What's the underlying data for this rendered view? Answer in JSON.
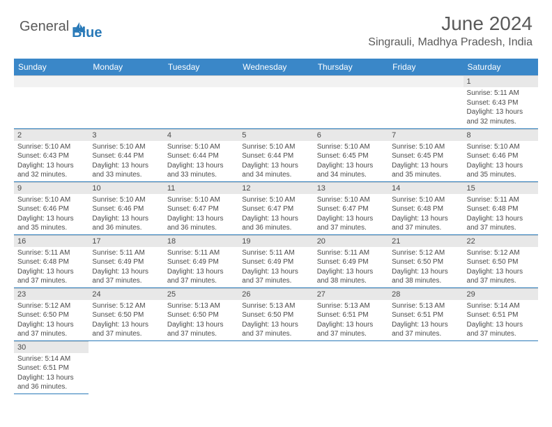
{
  "brand": {
    "part1": "General",
    "part2": "Blue"
  },
  "title": "June 2024",
  "location": "Singrauli, Madhya Pradesh, India",
  "colors": {
    "header_bg": "#3a87c8",
    "header_text": "#ffffff",
    "daynum_bg": "#e8e8e8",
    "cell_border": "#2a7ab8",
    "body_text": "#4a4a4a",
    "title_text": "#5a5a5a"
  },
  "typography": {
    "title_fontsize": 28,
    "location_fontsize": 16,
    "header_fontsize": 12,
    "daynum_fontsize": 11,
    "body_fontsize": 10
  },
  "weekdays": [
    "Sunday",
    "Monday",
    "Tuesday",
    "Wednesday",
    "Thursday",
    "Friday",
    "Saturday"
  ],
  "weeks": [
    [
      null,
      null,
      null,
      null,
      null,
      null,
      {
        "n": 1,
        "sr": "5:11 AM",
        "ss": "6:43 PM",
        "dl": "13 hours and 32 minutes."
      }
    ],
    [
      {
        "n": 2,
        "sr": "5:10 AM",
        "ss": "6:43 PM",
        "dl": "13 hours and 32 minutes."
      },
      {
        "n": 3,
        "sr": "5:10 AM",
        "ss": "6:44 PM",
        "dl": "13 hours and 33 minutes."
      },
      {
        "n": 4,
        "sr": "5:10 AM",
        "ss": "6:44 PM",
        "dl": "13 hours and 33 minutes."
      },
      {
        "n": 5,
        "sr": "5:10 AM",
        "ss": "6:44 PM",
        "dl": "13 hours and 34 minutes."
      },
      {
        "n": 6,
        "sr": "5:10 AM",
        "ss": "6:45 PM",
        "dl": "13 hours and 34 minutes."
      },
      {
        "n": 7,
        "sr": "5:10 AM",
        "ss": "6:45 PM",
        "dl": "13 hours and 35 minutes."
      },
      {
        "n": 8,
        "sr": "5:10 AM",
        "ss": "6:46 PM",
        "dl": "13 hours and 35 minutes."
      }
    ],
    [
      {
        "n": 9,
        "sr": "5:10 AM",
        "ss": "6:46 PM",
        "dl": "13 hours and 35 minutes."
      },
      {
        "n": 10,
        "sr": "5:10 AM",
        "ss": "6:46 PM",
        "dl": "13 hours and 36 minutes."
      },
      {
        "n": 11,
        "sr": "5:10 AM",
        "ss": "6:47 PM",
        "dl": "13 hours and 36 minutes."
      },
      {
        "n": 12,
        "sr": "5:10 AM",
        "ss": "6:47 PM",
        "dl": "13 hours and 36 minutes."
      },
      {
        "n": 13,
        "sr": "5:10 AM",
        "ss": "6:47 PM",
        "dl": "13 hours and 37 minutes."
      },
      {
        "n": 14,
        "sr": "5:10 AM",
        "ss": "6:48 PM",
        "dl": "13 hours and 37 minutes."
      },
      {
        "n": 15,
        "sr": "5:11 AM",
        "ss": "6:48 PM",
        "dl": "13 hours and 37 minutes."
      }
    ],
    [
      {
        "n": 16,
        "sr": "5:11 AM",
        "ss": "6:48 PM",
        "dl": "13 hours and 37 minutes."
      },
      {
        "n": 17,
        "sr": "5:11 AM",
        "ss": "6:49 PM",
        "dl": "13 hours and 37 minutes."
      },
      {
        "n": 18,
        "sr": "5:11 AM",
        "ss": "6:49 PM",
        "dl": "13 hours and 37 minutes."
      },
      {
        "n": 19,
        "sr": "5:11 AM",
        "ss": "6:49 PM",
        "dl": "13 hours and 37 minutes."
      },
      {
        "n": 20,
        "sr": "5:11 AM",
        "ss": "6:49 PM",
        "dl": "13 hours and 38 minutes."
      },
      {
        "n": 21,
        "sr": "5:12 AM",
        "ss": "6:50 PM",
        "dl": "13 hours and 38 minutes."
      },
      {
        "n": 22,
        "sr": "5:12 AM",
        "ss": "6:50 PM",
        "dl": "13 hours and 37 minutes."
      }
    ],
    [
      {
        "n": 23,
        "sr": "5:12 AM",
        "ss": "6:50 PM",
        "dl": "13 hours and 37 minutes."
      },
      {
        "n": 24,
        "sr": "5:12 AM",
        "ss": "6:50 PM",
        "dl": "13 hours and 37 minutes."
      },
      {
        "n": 25,
        "sr": "5:13 AM",
        "ss": "6:50 PM",
        "dl": "13 hours and 37 minutes."
      },
      {
        "n": 26,
        "sr": "5:13 AM",
        "ss": "6:50 PM",
        "dl": "13 hours and 37 minutes."
      },
      {
        "n": 27,
        "sr": "5:13 AM",
        "ss": "6:51 PM",
        "dl": "13 hours and 37 minutes."
      },
      {
        "n": 28,
        "sr": "5:13 AM",
        "ss": "6:51 PM",
        "dl": "13 hours and 37 minutes."
      },
      {
        "n": 29,
        "sr": "5:14 AM",
        "ss": "6:51 PM",
        "dl": "13 hours and 37 minutes."
      }
    ],
    [
      {
        "n": 30,
        "sr": "5:14 AM",
        "ss": "6:51 PM",
        "dl": "13 hours and 36 minutes."
      },
      null,
      null,
      null,
      null,
      null,
      null
    ]
  ],
  "labels": {
    "sunrise": "Sunrise:",
    "sunset": "Sunset:",
    "daylight": "Daylight:"
  }
}
